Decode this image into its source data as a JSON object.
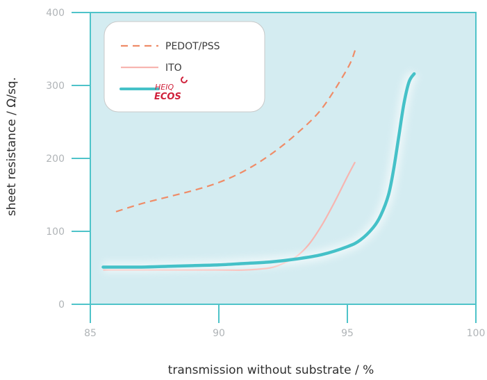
{
  "chart_data": {
    "type": "line",
    "title": "",
    "xlabel": "transmission without substrate / %",
    "ylabel": "sheet resistance / Ω/sq.",
    "xlim": [
      85,
      100
    ],
    "ylim": [
      0,
      400
    ],
    "xticks": [
      "85",
      "90",
      "95",
      "100"
    ],
    "yticks": [
      "0",
      "100",
      "200",
      "300",
      "400"
    ],
    "grid": false,
    "legend_position": "top-left",
    "colors": {
      "plot_background": "#d4ecf1",
      "axis": "#4ec3c9",
      "pedot": "#ef8c68",
      "ito": "#f7b5b0",
      "heiq": "#45c1c8",
      "logo": "#d0213b"
    },
    "series": [
      {
        "name": "PEDOT/PSS",
        "style": "dashed",
        "x": [
          86.0,
          87.0,
          88.0,
          89.0,
          90.0,
          91.0,
          92.0,
          93.0,
          94.0,
          95.0,
          95.3
        ],
        "y": [
          127,
          138,
          147,
          156,
          167,
          183,
          205,
          233,
          268,
          323,
          348
        ]
      },
      {
        "name": "ITO",
        "style": "solid",
        "x": [
          85.5,
          87.0,
          88.5,
          90.0,
          91.0,
          92.0,
          92.5,
          93.0,
          93.5,
          94.0,
          94.5,
          95.0,
          95.3
        ],
        "y": [
          47,
          47,
          47,
          47,
          47,
          50,
          56,
          65,
          82,
          108,
          140,
          175,
          195
        ]
      },
      {
        "name": "",
        "legend_logo": "HEIQ ECOS",
        "style": "solid-glow",
        "x": [
          85.5,
          87.0,
          88.0,
          89.0,
          90.0,
          91.0,
          92.0,
          93.0,
          94.0,
          95.0,
          95.5,
          96.0,
          96.3,
          96.6,
          96.8,
          97.0,
          97.2,
          97.4,
          97.6
        ],
        "y": [
          51,
          51,
          52,
          53,
          54,
          56,
          58,
          62,
          68,
          79,
          88,
          105,
          122,
          150,
          185,
          230,
          275,
          305,
          316
        ]
      }
    ]
  }
}
